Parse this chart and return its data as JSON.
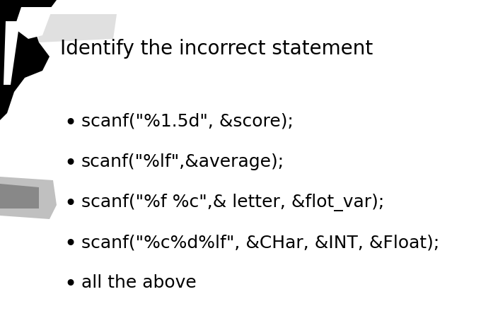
{
  "title": "Identify the incorrect statement",
  "title_fontsize": 20,
  "title_fontfamily": "DejaVu Sans",
  "bullet_items": [
    "scanf(\"%1.5d\", &score);",
    "scanf(\"%lf\",&average);",
    "scanf(\"%f %c\",& letter, &flot_var);",
    "scanf(\"%c%d%lf\", &CHar, &INT, &Float);",
    "all the above"
  ],
  "bullet_fontsize": 18,
  "bullet_fontfamily": "DejaVu Sans",
  "text_color": "#000000",
  "background_color": "#ffffff",
  "fig_width": 6.97,
  "fig_height": 4.57,
  "dpi": 100
}
